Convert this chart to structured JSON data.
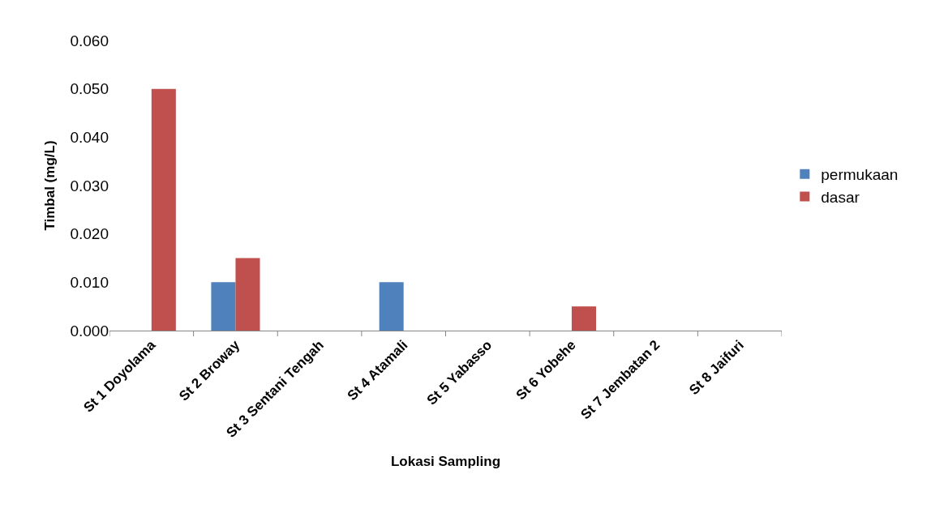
{
  "chart_data": {
    "type": "bar",
    "xlabel": "Lokasi Sampling",
    "ylabel": "Timbal (mg/L)",
    "categories": [
      "St 1 Doyolama",
      "St 2 Broway",
      "St 3 Sentani Tengah",
      "St 4 Atamali",
      "St 5 Yabasso",
      "St 6 Yobehe",
      "St 7 Jembatan 2",
      "St 8 Jaifuri"
    ],
    "series": [
      {
        "name": "permukaan",
        "color": "#4f81bd",
        "values": [
          0,
          0.01,
          0,
          0.01,
          0,
          0,
          0,
          0
        ]
      },
      {
        "name": "dasar",
        "color": "#c0504d",
        "values": [
          0.05,
          0.015,
          0,
          0,
          0,
          0.005,
          0,
          0
        ]
      }
    ],
    "ylim": [
      0,
      0.06
    ],
    "yticks": [
      {
        "value": 0,
        "label": "0.000"
      },
      {
        "value": 0.01,
        "label": "0.010"
      },
      {
        "value": 0.02,
        "label": "0.020"
      },
      {
        "value": 0.03,
        "label": "0.030"
      },
      {
        "value": 0.04,
        "label": "0.040"
      },
      {
        "value": 0.05,
        "label": "0.050"
      },
      {
        "value": 0.06,
        "label": "0.060"
      }
    ],
    "grid": false,
    "legend": "right"
  }
}
